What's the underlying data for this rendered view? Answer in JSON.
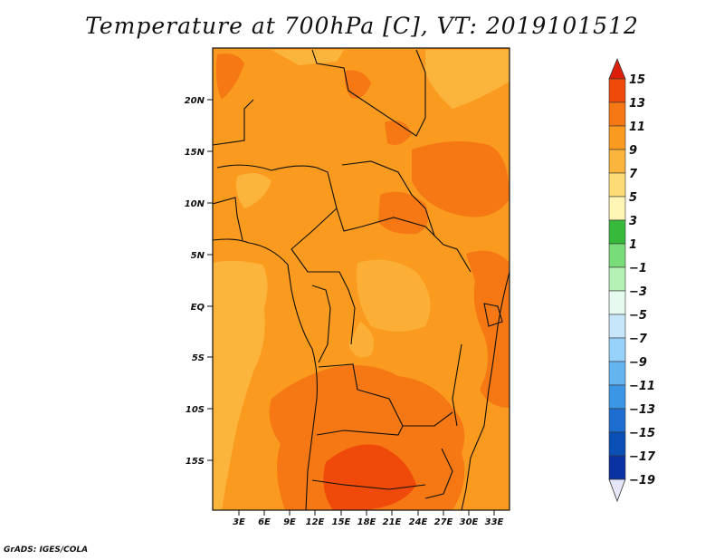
{
  "title": "Temperature at 700hPa [C], VT: 2019101512",
  "credit": "GrADS: IGES/COLA",
  "map": {
    "lat_labels": [
      "20N",
      "15N",
      "10N",
      "5N",
      "EQ",
      "5S",
      "10S",
      "15S"
    ],
    "lon_labels": [
      "3E",
      "6E",
      "9E",
      "12E",
      "15E",
      "18E",
      "21E",
      "24E",
      "27E",
      "30E",
      "33E"
    ]
  },
  "colorbar": {
    "labels": [
      "15",
      "13",
      "11",
      "9",
      "7",
      "5",
      "3",
      "1",
      "−1",
      "−3",
      "−5",
      "−7",
      "−9",
      "−11",
      "−13",
      "−15",
      "−17",
      "−19"
    ],
    "colors": [
      "#dc1e0a",
      "#f04a0a",
      "#f57814",
      "#fa9a1e",
      "#fbb43c",
      "#fddc78",
      "#fff5b4",
      "#37b93c",
      "#78dc78",
      "#b4f0b4",
      "#e6faf0",
      "#c8e6fa",
      "#96d2fa",
      "#64b4f0",
      "#3c96e6",
      "#1e6ed2",
      "#0a50b4",
      "#0a32a0",
      "#0a1e78",
      "#e6e6fa"
    ]
  }
}
